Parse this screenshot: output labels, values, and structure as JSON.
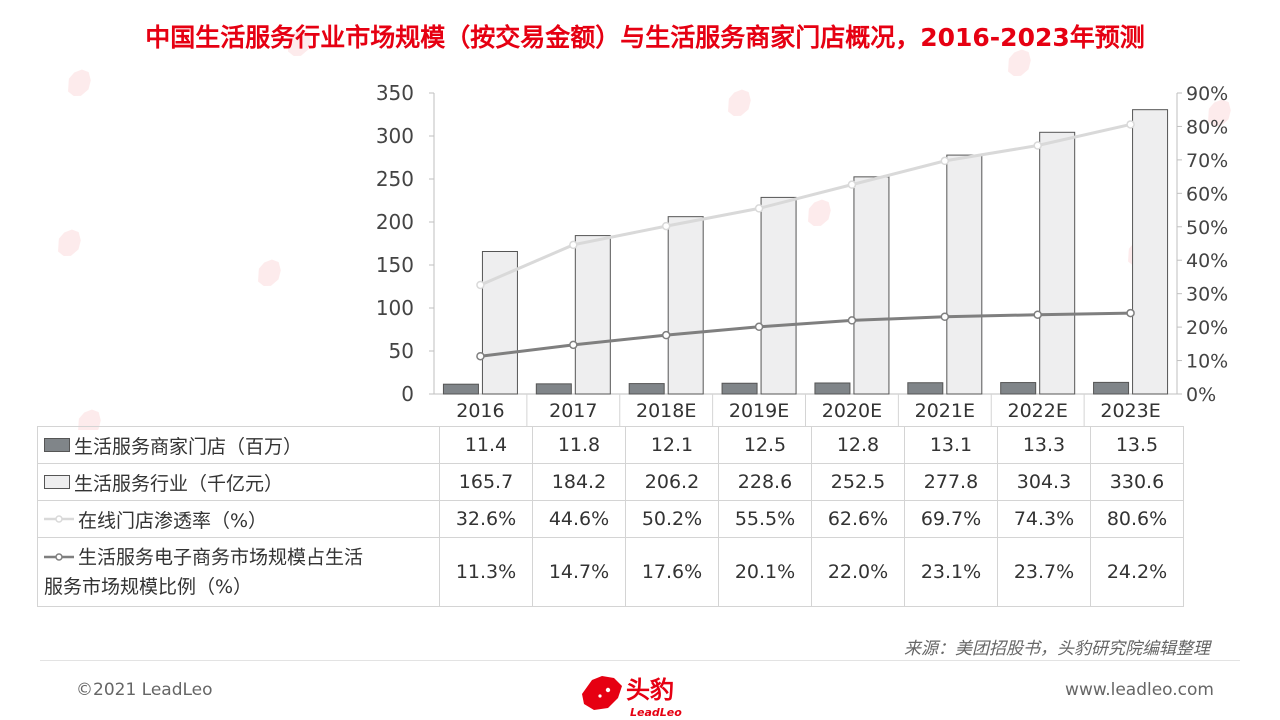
{
  "title": "中国生活服务行业市场规模（按交易金额）与生活服务商家门店概况，2016-2023年预测",
  "source": "来源：美团招股书，头豹研究院编辑整理",
  "footer": {
    "copyright": "©2021 LeadLeo",
    "website": "www.leadleo.com"
  },
  "logo": {
    "cn": "头豹",
    "en": "LeadLeo"
  },
  "colors": {
    "accent": "#e60012",
    "bar_dark": "#808589",
    "bar_light": "#eeeeef",
    "line_light": "#d9d9d9",
    "line_dark": "#7f7f7f"
  },
  "chart_data": {
    "type": "bar",
    "categories": [
      "2016",
      "2017",
      "2018E",
      "2019E",
      "2020E",
      "2021E",
      "2022E",
      "2023E"
    ],
    "y_left": {
      "min": 0,
      "max": 350,
      "ticks": [
        "0",
        "50",
        "100",
        "150",
        "200",
        "250",
        "300",
        "350"
      ]
    },
    "y_right": {
      "min": 0,
      "max": 90,
      "ticks": [
        "0%",
        "10%",
        "20%",
        "30%",
        "40%",
        "50%",
        "60%",
        "70%",
        "80%",
        "90%"
      ]
    },
    "grid": false,
    "legend": "data-table",
    "series": [
      {
        "name": "生活服务商家门店（百万）",
        "type": "bar",
        "axis": "left",
        "values": [
          11.4,
          11.8,
          12.1,
          12.5,
          12.8,
          13.1,
          13.3,
          13.5
        ],
        "labels": [
          "11.4",
          "11.8",
          "12.1",
          "12.5",
          "12.8",
          "13.1",
          "13.3",
          "13.5"
        ]
      },
      {
        "name": "生活服务行业（千亿元）",
        "type": "bar",
        "axis": "left",
        "values": [
          165.7,
          184.2,
          206.2,
          228.6,
          252.5,
          277.8,
          304.3,
          330.6
        ],
        "labels": [
          "165.7",
          "184.2",
          "206.2",
          "228.6",
          "252.5",
          "277.8",
          "304.3",
          "330.6"
        ]
      },
      {
        "name": "在线门店渗透率（%）",
        "type": "line",
        "axis": "right",
        "values": [
          32.6,
          44.6,
          50.2,
          55.5,
          62.6,
          69.7,
          74.3,
          80.6
        ],
        "labels": [
          "32.6%",
          "44.6%",
          "50.2%",
          "55.5%",
          "62.6%",
          "69.7%",
          "74.3%",
          "80.6%"
        ]
      },
      {
        "name": "生活服务电子商务市场规模占生活服务市场规模比例（%）",
        "name_line1": "生活服务电子商务市场规模占生活",
        "name_line2": "服务市场规模比例（%）",
        "type": "line",
        "axis": "right",
        "values": [
          11.3,
          14.7,
          17.6,
          20.1,
          22.0,
          23.1,
          23.7,
          24.2
        ],
        "labels": [
          "11.3%",
          "14.7%",
          "17.6%",
          "20.1%",
          "22.0%",
          "23.1%",
          "23.7%",
          "24.2%"
        ]
      }
    ]
  }
}
